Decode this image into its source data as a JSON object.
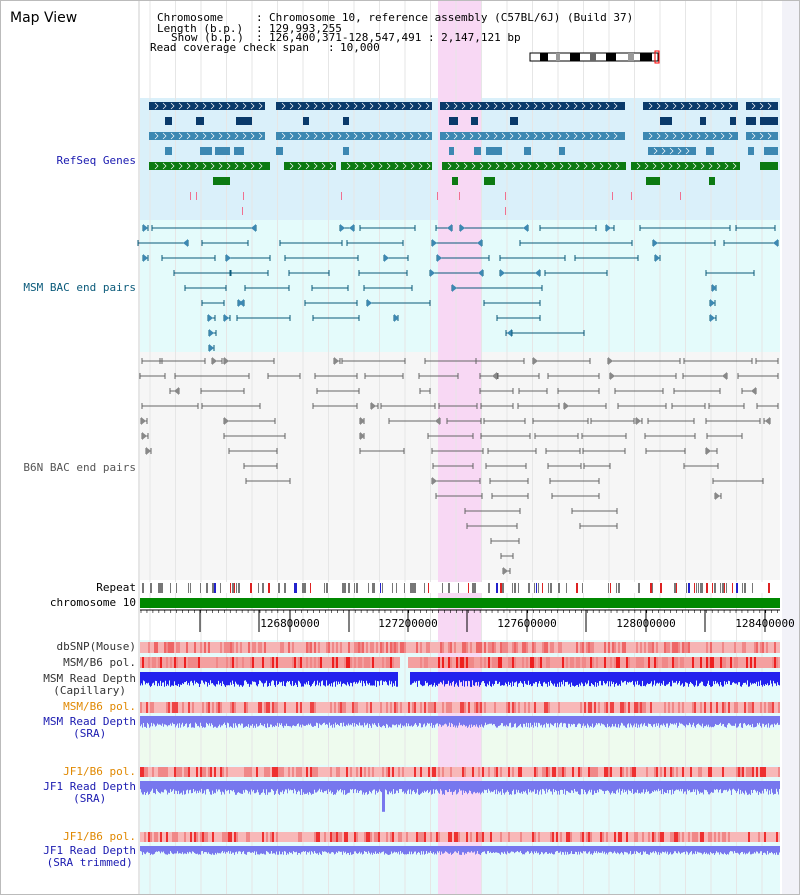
{
  "title": "Map View",
  "info": {
    "chromosome_key": "Chromosome",
    "chromosome_val": "Chromosome 10, reference assembly (C57BL/6J) (Build 37)",
    "length_key": "Length (b.p.)",
    "length_val": "129,993,255",
    "show_key": "Show (b.p.)",
    "show_val": "126,400,371-128,547,491 : 2,147,121 bp",
    "span_key": "Read coverage check span",
    "span_val": "10,000"
  },
  "tracks": {
    "refseq": "RefSeq Genes",
    "msm_bac": "MSM BAC end pairs",
    "b6n_bac": "B6N BAC end pairs",
    "repeat": "Repeat",
    "chromosome": "chromosome 10",
    "dbsnp": "dbSNP(Mouse)",
    "msm_pol1": "MSM/B6 pol.",
    "msm_depth_cap": "MSM Read Depth\n(Capillary)",
    "msm_pol2": "MSM/B6 pol.",
    "msm_depth_sra": "MSM Read Depth\n(SRA)",
    "jf1_pol1": "JF1/B6 pol.",
    "jf1_depth_sra": "JF1 Read Depth\n(SRA)",
    "jf1_pol2": "JF1/B6 pol.",
    "jf1_depth_trim": "JF1 Read Depth\n(SRA trimmed)"
  },
  "axis_ticks": [
    "126800000",
    "127200000",
    "127600000",
    "128000000",
    "128400000"
  ],
  "colors": {
    "highlight": "#f8d8f4",
    "refseq_bg": "#daf0fa",
    "bac_bg": "#e4fbfb",
    "gene_dark": "#0a3a6a",
    "gene_mid": "#3c88b2",
    "gene_green": "#0c7a12",
    "chromosome_bar": "#008800",
    "snp": "#ee5555",
    "depth_dark": "#2222ee",
    "depth_light": "#7777ee",
    "label_blue": "#1a1ab0",
    "label_teal": "#0a5a7a",
    "label_orange": "#e08800"
  }
}
